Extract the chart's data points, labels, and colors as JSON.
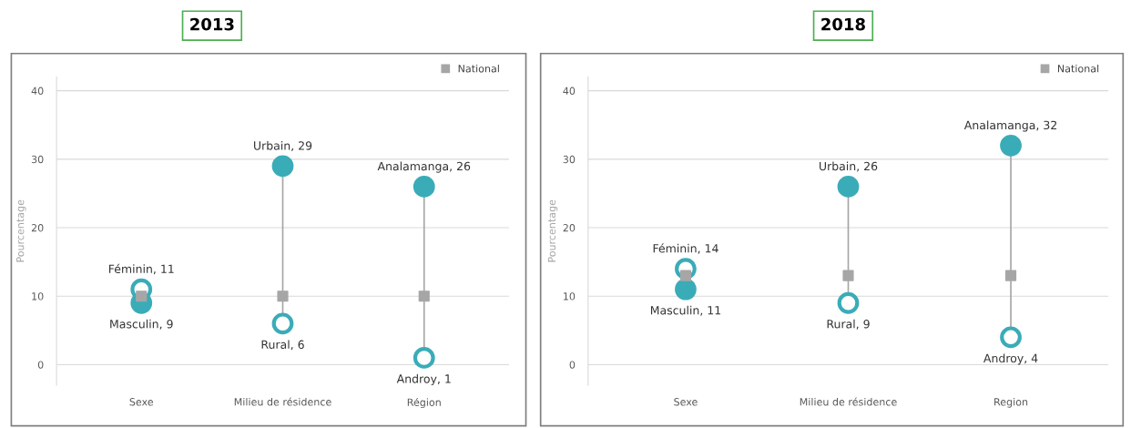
{
  "chart_data": [
    {
      "type": "scatter",
      "title": "2013",
      "ylabel": "Pourcentage",
      "categories": [
        "Sexe",
        "Milieu de résidence",
        "Région"
      ],
      "ylim": [
        -3,
        42
      ],
      "yticks": [
        0,
        10,
        20,
        30,
        40
      ],
      "grid": "y",
      "legend": "top right",
      "series": [
        {
          "color": "#3aacb8",
          "marker": "circle",
          "values": [
            9,
            29,
            26
          ],
          "value_labels": [
            "Masculin, 9",
            "Urbain, 29",
            "Analamanga, 26"
          ]
        },
        {
          "color": "#3aacb8",
          "marker": "circle_open",
          "values": [
            11,
            6,
            1
          ],
          "value_labels": [
            "Féminin, 11",
            "Rural, 6",
            "Androy, 1"
          ]
        },
        {
          "name": "National",
          "color": "#a6a6a6",
          "marker": "square",
          "values": [
            10,
            10,
            10
          ]
        }
      ]
    },
    {
      "type": "scatter",
      "title": "2018",
      "ylabel": "Pourcentage",
      "categories": [
        "Sexe",
        "Milieu de résidence",
        "Region"
      ],
      "ylim": [
        -3,
        42
      ],
      "yticks": [
        0,
        10,
        20,
        30,
        40
      ],
      "grid": "y",
      "legend": "top right",
      "series": [
        {
          "color": "#3aacb8",
          "marker": "circle",
          "values": [
            11,
            26,
            32
          ],
          "value_labels": [
            "Masculin, 11",
            "Urbain, 26",
            "Analamanga, 32"
          ]
        },
        {
          "color": "#3aacb8",
          "marker": "circle_open",
          "values": [
            14,
            9,
            4
          ],
          "value_labels": [
            "Féminin, 14",
            "Rural, 9",
            "Androy, 4"
          ]
        },
        {
          "name": "National",
          "color": "#a6a6a6",
          "marker": "square",
          "values": [
            13,
            13,
            13
          ]
        }
      ]
    }
  ]
}
